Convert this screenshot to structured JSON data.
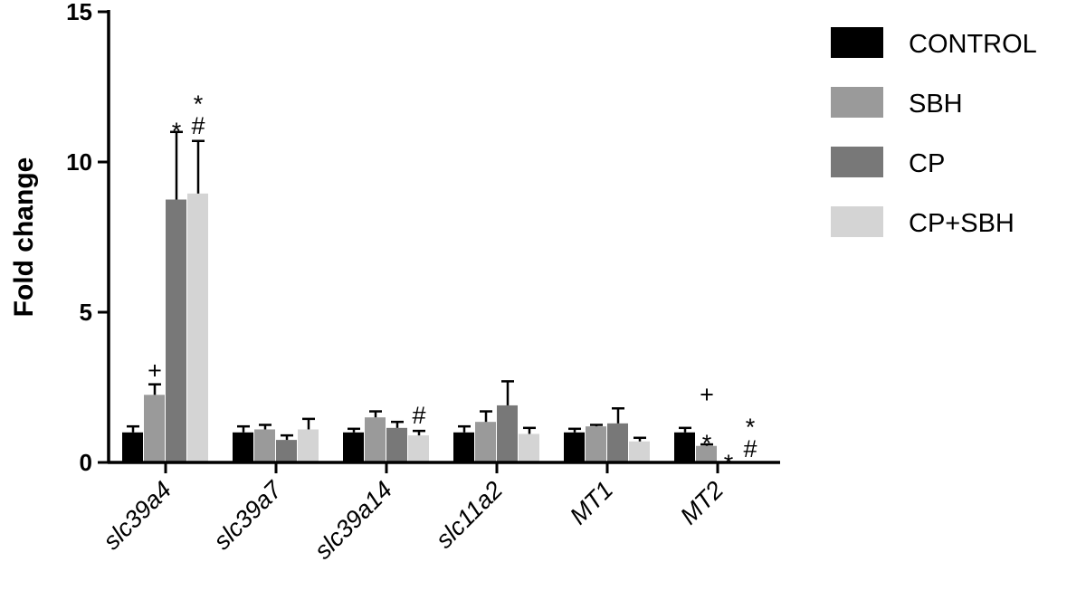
{
  "chart_data": {
    "type": "bar",
    "ylabel": "Fold change",
    "xlabel": "",
    "ylim": [
      0,
      15
    ],
    "yticks": [
      "0",
      "5",
      "10",
      "15"
    ],
    "categories": [
      "slc39a4",
      "slc39a7",
      "slc39a14",
      "slc11a2",
      "MT1",
      "MT2"
    ],
    "legend_position": "right",
    "series": [
      {
        "name": "CONTROL",
        "color": "#000000",
        "values": [
          1.0,
          1.0,
          1.0,
          1.0,
          1.0,
          1.0
        ],
        "errors": [
          0.2,
          0.2,
          0.12,
          0.2,
          0.12,
          0.15
        ]
      },
      {
        "name": "SBH",
        "color": "#9a9a9a",
        "values": [
          2.25,
          1.1,
          1.5,
          1.35,
          1.2,
          0.55
        ],
        "errors": [
          0.35,
          0.15,
          0.2,
          0.35,
          0.05,
          0.05
        ]
      },
      {
        "name": "CP",
        "color": "#787878",
        "values": [
          8.75,
          0.75,
          1.15,
          1.9,
          1.3,
          0.0
        ],
        "errors": [
          2.25,
          0.15,
          0.2,
          0.8,
          0.5,
          0.0
        ]
      },
      {
        "name": "CP+SBH",
        "color": "#d4d4d4",
        "values": [
          8.95,
          1.1,
          0.9,
          0.95,
          0.7,
          0.0
        ],
        "errors": [
          1.75,
          0.35,
          0.15,
          0.2,
          0.12,
          0.0
        ]
      }
    ],
    "annotations": [
      {
        "category": 0,
        "series": 1,
        "lines": [
          "+"
        ]
      },
      {
        "category": 0,
        "series": 2,
        "lines": [
          "*"
        ]
      },
      {
        "category": 0,
        "series": 3,
        "lines": [
          "*",
          "#"
        ]
      },
      {
        "category": 2,
        "series": 3,
        "lines": [
          "#"
        ]
      },
      {
        "category": 5,
        "series": 1,
        "lines": [
          "+",
          "*"
        ]
      },
      {
        "category": 5,
        "series": 2,
        "lines": [
          "*"
        ]
      },
      {
        "category": 5,
        "series": 3,
        "lines": [
          "*",
          "#"
        ]
      }
    ]
  }
}
